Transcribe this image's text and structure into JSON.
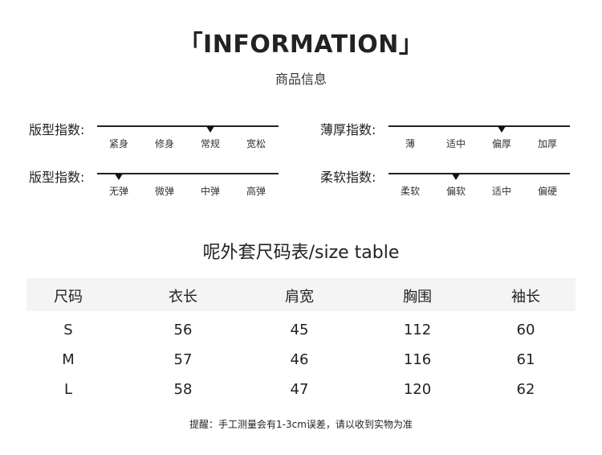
{
  "header": {
    "title": "「INFORMATION」",
    "subtitle": "商品信息"
  },
  "indicators": [
    {
      "label": "版型指数:",
      "options": [
        "紧身",
        "修身",
        "常规",
        "宽松"
      ],
      "selected": 2
    },
    {
      "label": "薄厚指数:",
      "options": [
        "薄",
        "适中",
        "偏厚",
        "加厚"
      ],
      "selected": 2
    },
    {
      "label": "版型指数:",
      "options": [
        "无弹",
        "微弹",
        "中弹",
        "高弹"
      ],
      "selected": 0
    },
    {
      "label": "柔软指数:",
      "options": [
        "柔软",
        "偏软",
        "适中",
        "偏硬"
      ],
      "selected": 1
    }
  ],
  "size_table": {
    "title": "呢外套尺码表/size table",
    "headers": [
      "尺码",
      "衣长",
      "肩宽",
      "胸围",
      "袖长"
    ],
    "rows": [
      [
        "S",
        "56",
        "45",
        "112",
        "60"
      ],
      [
        "M",
        "57",
        "46",
        "116",
        "61"
      ],
      [
        "L",
        "58",
        "47",
        "120",
        "62"
      ]
    ]
  },
  "note": "提醒：手工测量会有1-3cm误差，请以收到实物为准"
}
